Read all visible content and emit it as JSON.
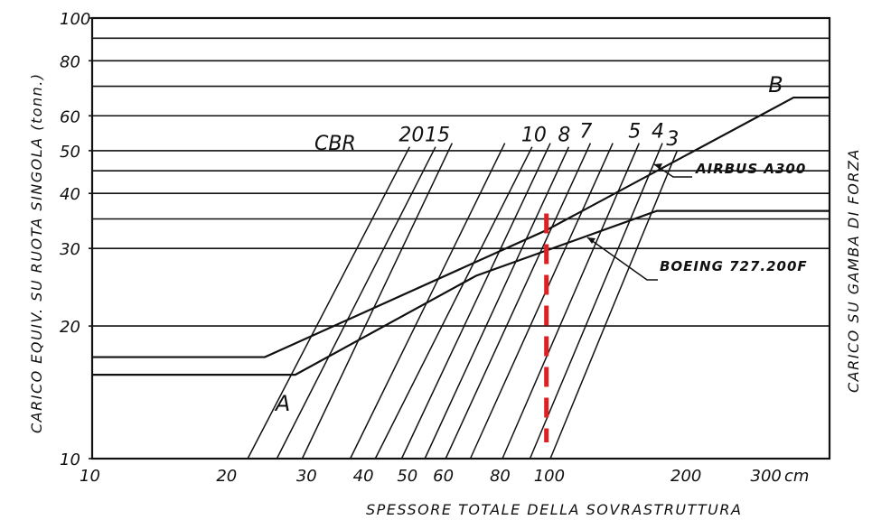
{
  "chart_data": {
    "type": "line",
    "xscale": "log",
    "yscale": "log",
    "xlim": [
      10,
      420
    ],
    "ylim": [
      10,
      100
    ],
    "x_ticks": [
      10,
      20,
      30,
      40,
      50,
      60,
      80,
      100,
      200,
      300
    ],
    "x_unit": "cm",
    "y_ticks": [
      10,
      20,
      30,
      40,
      50,
      60,
      80,
      100
    ],
    "y_grid": [
      10,
      20,
      30,
      35,
      40,
      45,
      50,
      60,
      70,
      80,
      90,
      100
    ],
    "grid": true,
    "xlabel": "SPESSORE TOTALE DELLA SOVRASTRUTTURA",
    "ylabel": "CARICO EQUIV. SU RUOTA SINGOLA (tonn.)",
    "ylabel_right": "CARICO SU GAMBA DI FORZA",
    "cbr_label": "CBR",
    "cbr_lines": [
      {
        "cbr": "20",
        "x": [
          22,
          50
        ],
        "y": [
          10,
          51
        ]
      },
      {
        "cbr": "15",
        "x": [
          25.5,
          57
        ],
        "y": [
          10,
          51
        ]
      },
      {
        "cbr": "",
        "x": [
          29,
          62
        ],
        "y": [
          10,
          52
        ]
      },
      {
        "cbr": "",
        "x": [
          37,
          81
        ],
        "y": [
          10,
          52
        ]
      },
      {
        "cbr": "10",
        "x": [
          42,
          93
        ],
        "y": [
          10,
          51
        ]
      },
      {
        "cbr": "",
        "x": [
          48,
          102
        ],
        "y": [
          10,
          52
        ]
      },
      {
        "cbr": "8",
        "x": [
          54,
          112
        ],
        "y": [
          10,
          51
        ]
      },
      {
        "cbr": "7",
        "x": [
          60,
          125
        ],
        "y": [
          10,
          52
        ]
      },
      {
        "cbr": "",
        "x": [
          68,
          140
        ],
        "y": [
          10,
          52
        ]
      },
      {
        "cbr": "5",
        "x": [
          80,
          160
        ],
        "y": [
          10,
          52
        ]
      },
      {
        "cbr": "4",
        "x": [
          92,
          180
        ],
        "y": [
          10,
          52
        ]
      },
      {
        "cbr": "3",
        "x": [
          102,
          194
        ],
        "y": [
          10,
          50
        ]
      }
    ],
    "series": [
      {
        "name": "AIRBUS A300",
        "x": [
          10,
          24,
          100,
          350,
          420
        ],
        "y": [
          17,
          17,
          33,
          66,
          66
        ]
      },
      {
        "name": "BOEING 727.200F",
        "x": [
          10,
          28,
          70,
          175,
          420
        ],
        "y": [
          15.5,
          15.5,
          26,
          36.5,
          36.5
        ]
      }
    ],
    "points": [
      {
        "label": "A",
        "x": 27,
        "y": 15.5
      },
      {
        "label": "B",
        "x": 350,
        "y": 66
      }
    ],
    "marker": {
      "x": 100,
      "style": "red dashed vertical line"
    }
  }
}
